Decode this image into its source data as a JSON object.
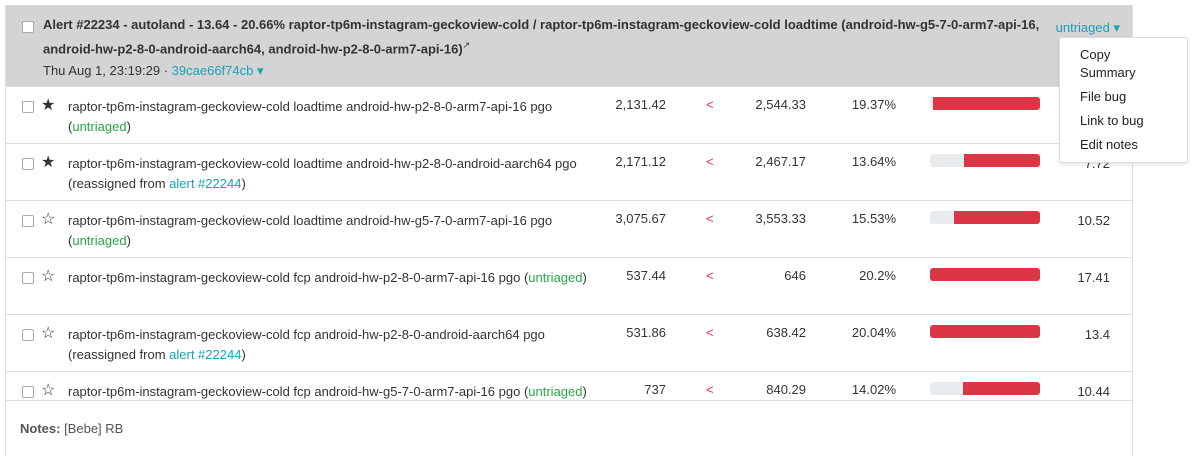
{
  "header": {
    "title": "Alert #22234 - autoland - 13.64 - 20.66% raptor-tp6m-instagram-geckoview-cold / raptor-tp6m-instagram-geckoview-cold loadtime (android-hw-g5-7-0-arm7-api-16, android-hw-p2-8-0-android-aarch64, android-hw-p2-8-0-arm7-api-16)",
    "external_icon": "↗",
    "date": "Thu Aug 1, 23:19:29 ·",
    "revision": "39cae66f74cb ▾",
    "status": "untriaged ▾"
  },
  "menu": [
    "Copy Summary",
    "File bug",
    "Link to bug",
    "Edit notes"
  ],
  "rows": [
    {
      "star": "★",
      "name": "raptor-tp6m-instagram-geckoview-cold loadtime android-hw-p2-8-0-arm7-api-16 pgo",
      "pre": "(",
      "status": "untriaged",
      "post": ")",
      "link": "",
      "prev": "2,131.42",
      "cmp": "<",
      "new": "2,544.33",
      "pct": "19.37%",
      "bar": 0.97,
      "mag": ""
    },
    {
      "star": "★",
      "name": "raptor-tp6m-instagram-geckoview-cold loadtime android-hw-p2-8-0-android-aarch64 pgo",
      "pre": "(reassigned from ",
      "status": "",
      "link": "alert #22244",
      "post": ")",
      "prev": "2,171.12",
      "cmp": "<",
      "new": "2,467.17",
      "pct": "13.64%",
      "bar": 0.69,
      "mag": "7.72"
    },
    {
      "star": "☆",
      "name": "raptor-tp6m-instagram-geckoview-cold loadtime android-hw-g5-7-0-arm7-api-16 pgo",
      "pre": "(",
      "status": "untriaged",
      "post": ")",
      "link": "",
      "prev": "3,075.67",
      "cmp": "<",
      "new": "3,553.33",
      "pct": "15.53%",
      "bar": 0.78,
      "mag": "10.52"
    },
    {
      "star": "☆",
      "name": "raptor-tp6m-instagram-geckoview-cold fcp android-hw-p2-8-0-arm7-api-16 pgo",
      "pre": "(",
      "status": "untriaged",
      "post": ")",
      "link": "",
      "prev": "537.44",
      "cmp": "<",
      "new": "646",
      "pct": "20.2%",
      "bar": 1.0,
      "mag": "17.41",
      "inline": true
    },
    {
      "star": "☆",
      "name": "raptor-tp6m-instagram-geckoview-cold fcp android-hw-p2-8-0-android-aarch64 pgo",
      "pre": "(reassigned from ",
      "status": "",
      "link": "alert #22244",
      "post": ")",
      "prev": "531.86",
      "cmp": "<",
      "new": "638.42",
      "pct": "20.04%",
      "bar": 1.0,
      "mag": "13.4"
    },
    {
      "star": "☆",
      "name": "raptor-tp6m-instagram-geckoview-cold fcp android-hw-g5-7-0-arm7-api-16 pgo",
      "pre": "(",
      "status": "untriaged",
      "post": ")",
      "link": "",
      "prev": "737",
      "cmp": "<",
      "new": "840.29",
      "pct": "14.02%",
      "bar": 0.7,
      "mag": "10.44",
      "inline": true
    }
  ],
  "notes": {
    "label": "Notes:",
    "text": "[Bebe] RB"
  },
  "colors": {
    "accent": "#17a2b8",
    "regression": "#dc3545",
    "untriaged": "#28a745"
  }
}
